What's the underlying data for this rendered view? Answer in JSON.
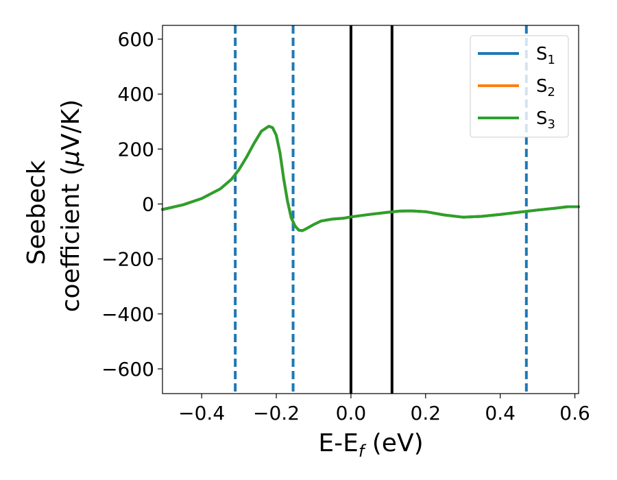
{
  "chart_data": {
    "type": "line",
    "xlabel": {
      "main": "E-E",
      "sub": "f",
      "unit": " (eV)"
    },
    "ylabel": {
      "line1": "Seebeck",
      "line2_prefix": "coefficient  (",
      "mu": "μ",
      "line2_suffix": "V/K)"
    },
    "xlim": [
      -0.505,
      0.61
    ],
    "ylim": [
      -690,
      650
    ],
    "x_ticks": [
      -0.4,
      -0.2,
      0.0,
      0.2,
      0.4,
      0.6
    ],
    "x_tick_labels": [
      "−0.4",
      "−0.2",
      "0.0",
      "0.2",
      "0.4",
      "0.6"
    ],
    "y_ticks": [
      600,
      400,
      200,
      0,
      -200,
      -400,
      -600
    ],
    "y_tick_labels": [
      "600",
      "400",
      "200",
      "0",
      "−200",
      "−400",
      "−600"
    ],
    "legend_position": "top-right",
    "series": [
      {
        "name": "S",
        "sub": "1",
        "color": "#1f77b4",
        "x": [
          -0.505,
          -0.45,
          -0.4,
          -0.35,
          -0.32,
          -0.3,
          -0.28,
          -0.26,
          -0.24,
          -0.22,
          -0.21,
          -0.2,
          -0.19,
          -0.18,
          -0.17,
          -0.16,
          -0.15,
          -0.14,
          -0.13,
          -0.12,
          -0.1,
          -0.08,
          -0.05,
          -0.02,
          0.0,
          0.05,
          0.1,
          0.13,
          0.16,
          0.2,
          0.25,
          0.3,
          0.35,
          0.4,
          0.45,
          0.5,
          0.55,
          0.58,
          0.61
        ],
        "y": [
          -20,
          -3,
          20,
          55,
          90,
          125,
          170,
          220,
          265,
          283,
          278,
          250,
          185,
          90,
          10,
          -50,
          -80,
          -95,
          -97,
          -90,
          -75,
          -62,
          -55,
          -52,
          -47,
          -38,
          -30,
          -26,
          -25,
          -28,
          -40,
          -48,
          -45,
          -38,
          -30,
          -22,
          -15,
          -10,
          -10
        ]
      },
      {
        "name": "S",
        "sub": "2",
        "color": "#ff7f0e",
        "x": [
          -0.505,
          -0.45,
          -0.4,
          -0.35,
          -0.32,
          -0.3,
          -0.28,
          -0.26,
          -0.24,
          -0.22,
          -0.21,
          -0.2,
          -0.19,
          -0.18,
          -0.17,
          -0.16,
          -0.15,
          -0.14,
          -0.13,
          -0.12,
          -0.1,
          -0.08,
          -0.05,
          -0.02,
          0.0,
          0.05,
          0.1,
          0.13,
          0.16,
          0.2,
          0.25,
          0.3,
          0.35,
          0.4,
          0.45,
          0.5,
          0.55,
          0.58,
          0.61
        ],
        "y": [
          -20,
          -3,
          20,
          55,
          90,
          125,
          170,
          220,
          265,
          283,
          278,
          250,
          185,
          90,
          10,
          -50,
          -80,
          -95,
          -97,
          -90,
          -75,
          -62,
          -55,
          -52,
          -47,
          -38,
          -30,
          -26,
          -25,
          -28,
          -40,
          -48,
          -45,
          -38,
          -30,
          -22,
          -15,
          -10,
          -10
        ]
      },
      {
        "name": "S",
        "sub": "3",
        "color": "#2ca02c",
        "x": [
          -0.505,
          -0.45,
          -0.4,
          -0.35,
          -0.32,
          -0.3,
          -0.28,
          -0.26,
          -0.24,
          -0.22,
          -0.21,
          -0.2,
          -0.19,
          -0.18,
          -0.17,
          -0.16,
          -0.15,
          -0.14,
          -0.13,
          -0.12,
          -0.1,
          -0.08,
          -0.05,
          -0.02,
          0.0,
          0.05,
          0.1,
          0.13,
          0.16,
          0.2,
          0.25,
          0.3,
          0.35,
          0.4,
          0.45,
          0.5,
          0.55,
          0.58,
          0.61
        ],
        "y": [
          -20,
          -3,
          20,
          55,
          90,
          125,
          170,
          220,
          265,
          283,
          278,
          250,
          185,
          90,
          10,
          -50,
          -80,
          -95,
          -97,
          -90,
          -75,
          -62,
          -55,
          -52,
          -47,
          -38,
          -30,
          -26,
          -25,
          -28,
          -40,
          -48,
          -45,
          -38,
          -30,
          -22,
          -15,
          -10,
          -10
        ]
      }
    ],
    "vlines_dashed": {
      "x": [
        -0.31,
        -0.155,
        0.47
      ],
      "color": "#1f77b4"
    },
    "vlines_solid": {
      "x": [
        0.0,
        0.11
      ],
      "color": "#000000"
    }
  }
}
